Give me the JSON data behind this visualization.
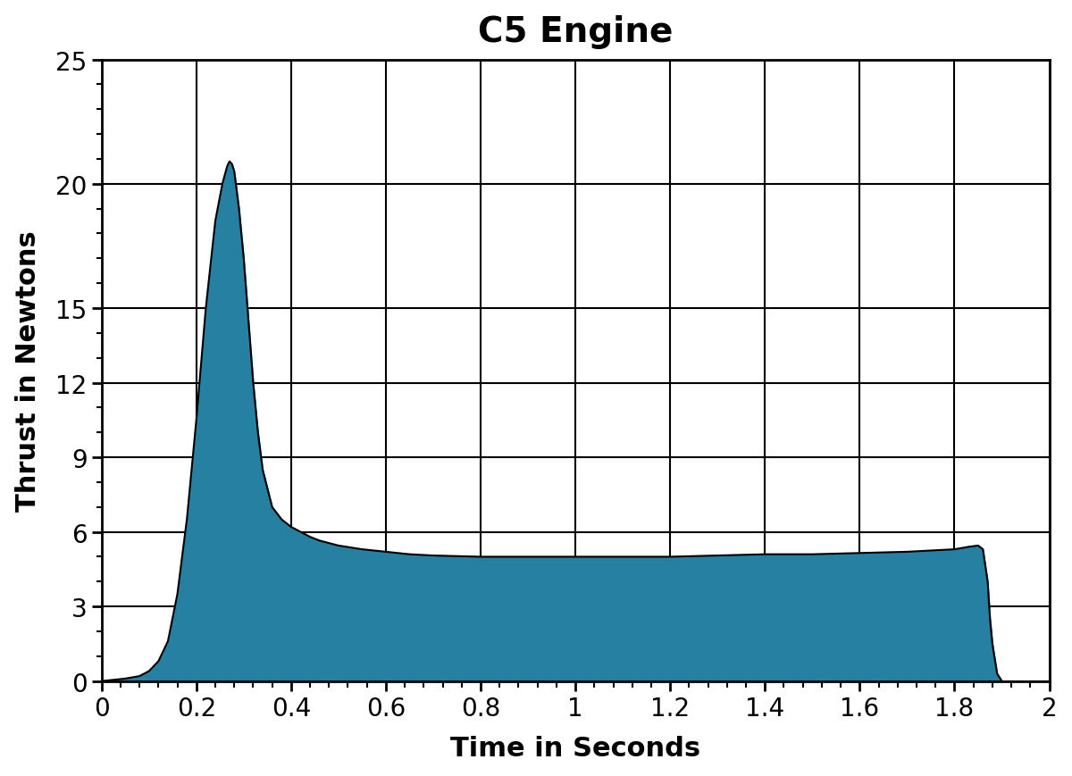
{
  "title": "C5 Engine",
  "xlabel": "Time in Seconds",
  "ylabel": "Thrust in Newtons",
  "xlim": [
    0,
    2
  ],
  "ylim": [
    0,
    25
  ],
  "xticks": [
    0,
    0.2,
    0.4,
    0.6,
    0.8,
    1.0,
    1.2,
    1.4,
    1.6,
    1.8,
    2.0
  ],
  "yticks": [
    0,
    3,
    6,
    9,
    12,
    15,
    20,
    25
  ],
  "x_minor_tick_spacing": 0.04,
  "y_minor_tick_spacing": 1,
  "fill_color": "#2580a2",
  "edge_color": "#000000",
  "background_color": "#ffffff",
  "title_fontsize": 28,
  "label_fontsize": 22,
  "tick_fontsize": 20,
  "grid_linewidth": 1.5,
  "spine_linewidth": 2.0,
  "curve_points": {
    "time": [
      0.0,
      0.05,
      0.08,
      0.1,
      0.12,
      0.14,
      0.16,
      0.18,
      0.2,
      0.22,
      0.24,
      0.255,
      0.265,
      0.27,
      0.275,
      0.28,
      0.29,
      0.3,
      0.31,
      0.32,
      0.33,
      0.34,
      0.36,
      0.38,
      0.4,
      0.42,
      0.44,
      0.46,
      0.48,
      0.5,
      0.55,
      0.6,
      0.65,
      0.7,
      0.8,
      0.9,
      1.0,
      1.1,
      1.2,
      1.3,
      1.4,
      1.5,
      1.6,
      1.7,
      1.8,
      1.83,
      1.85,
      1.86,
      1.87,
      1.875,
      1.88,
      1.89,
      1.9
    ],
    "thrust": [
      0.0,
      0.1,
      0.2,
      0.4,
      0.8,
      1.6,
      3.5,
      6.5,
      10.5,
      15.0,
      18.5,
      20.0,
      20.7,
      20.9,
      20.8,
      20.5,
      19.0,
      17.0,
      14.5,
      12.0,
      10.0,
      8.5,
      7.0,
      6.5,
      6.2,
      6.0,
      5.8,
      5.65,
      5.55,
      5.45,
      5.3,
      5.2,
      5.1,
      5.05,
      5.0,
      5.0,
      5.0,
      5.0,
      5.0,
      5.05,
      5.1,
      5.1,
      5.15,
      5.2,
      5.3,
      5.4,
      5.45,
      5.3,
      4.0,
      2.5,
      1.5,
      0.3,
      0.0
    ]
  }
}
